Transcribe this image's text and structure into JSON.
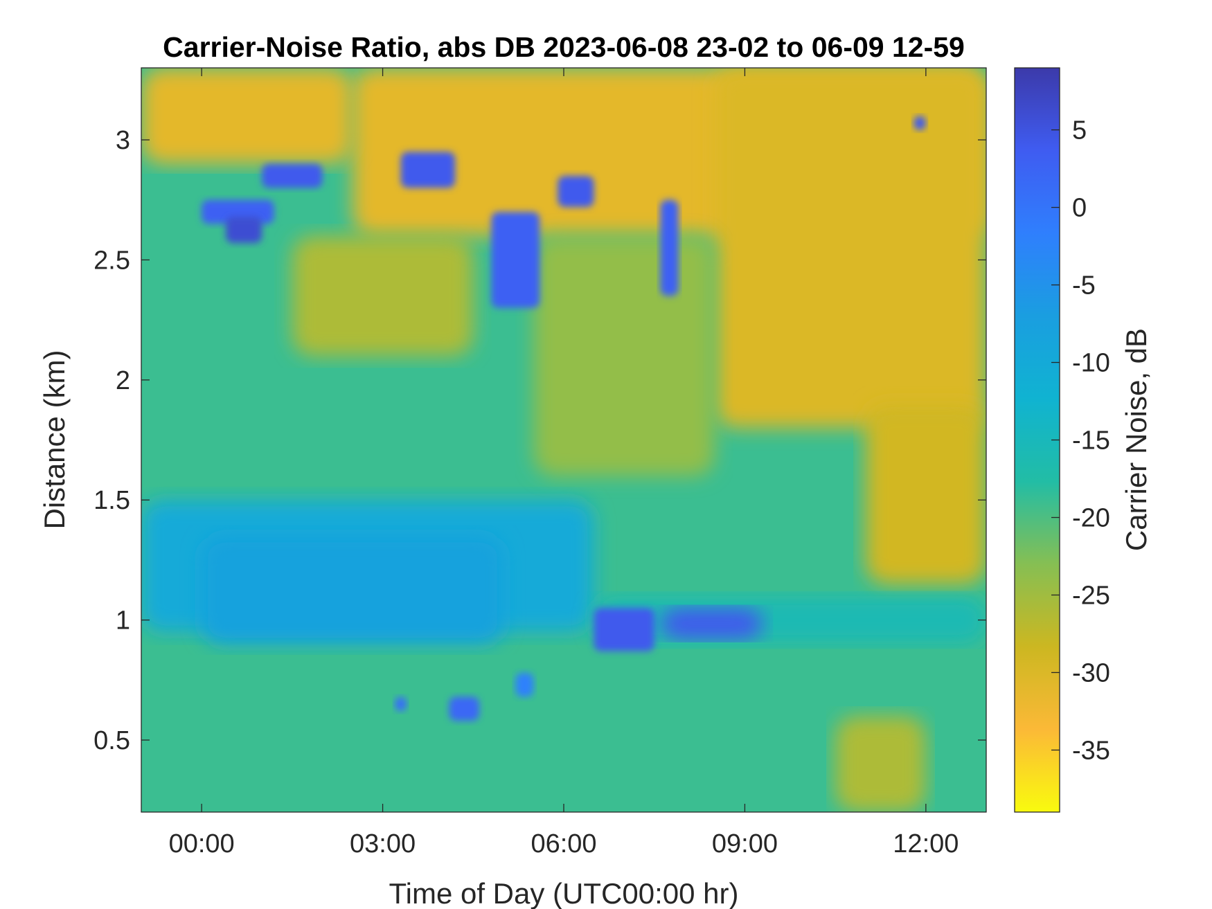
{
  "chart_data": {
    "type": "heatmap",
    "title": "Carrier-Noise Ratio, abs DB 2023-06-08 23-02 to 06-09 12-59",
    "xlabel": "Time of Day (UTC00:00 hr)",
    "ylabel": "Distance (km)",
    "xlim_hours": [
      -1.0,
      13.0
    ],
    "ylim_km": [
      0.2,
      3.3
    ],
    "x_ticks": [
      {
        "value": 0,
        "label": "00:00"
      },
      {
        "value": 3,
        "label": "03:00"
      },
      {
        "value": 6,
        "label": "06:00"
      },
      {
        "value": 9,
        "label": "09:00"
      },
      {
        "value": 12,
        "label": "12:00"
      }
    ],
    "y_ticks": [
      {
        "value": 0.5,
        "label": "0.5"
      },
      {
        "value": 1.0,
        "label": "1"
      },
      {
        "value": 1.5,
        "label": "1.5"
      },
      {
        "value": 2.0,
        "label": "2"
      },
      {
        "value": 2.5,
        "label": "2.5"
      },
      {
        "value": 3.0,
        "label": "3"
      }
    ],
    "colorbar": {
      "label": "Carrier Noise, dB",
      "range": [
        -39,
        9
      ],
      "ticks": [
        {
          "value": 5,
          "label": "5"
        },
        {
          "value": 0,
          "label": "0"
        },
        {
          "value": -5,
          "label": "-5"
        },
        {
          "value": -10,
          "label": "-10"
        },
        {
          "value": -15,
          "label": "-15"
        },
        {
          "value": -20,
          "label": "-20"
        },
        {
          "value": -25,
          "label": "-25"
        },
        {
          "value": -30,
          "label": "-30"
        },
        {
          "value": -35,
          "label": "-35"
        }
      ],
      "colormap": [
        "#f9fb0e",
        "#fbb937",
        "#ccb721",
        "#86bf53",
        "#22bda5",
        "#10b3d1",
        "#1a9ee0",
        "#2f7ffd",
        "#3f5cf1",
        "#3c3aaa"
      ]
    },
    "regions": [
      {
        "name": "background",
        "x": [
          -1,
          13
        ],
        "y": [
          0.2,
          3.3
        ],
        "value": -19
      },
      {
        "name": "clear-air-upper",
        "x": [
          2.5,
          13
        ],
        "y": [
          2.6,
          3.3
        ],
        "value": -31
      },
      {
        "name": "clear-air-upper-left",
        "x": [
          -1,
          2.5
        ],
        "y": [
          2.9,
          3.3
        ],
        "value": -31
      },
      {
        "name": "clear-air-late",
        "x": [
          8.5,
          13
        ],
        "y": [
          1.8,
          3.3
        ],
        "value": -30
      },
      {
        "name": "clear-air-late-lower",
        "x": [
          11.0,
          13
        ],
        "y": [
          1.15,
          1.9
        ],
        "value": -29
      },
      {
        "name": "mid-yellowish",
        "x": [
          1.5,
          4.5
        ],
        "y": [
          2.1,
          2.6
        ],
        "value": -26
      },
      {
        "name": "transition-east",
        "x": [
          5.5,
          8.5
        ],
        "y": [
          1.6,
          2.6
        ],
        "value": -24
      },
      {
        "name": "boundary-layer",
        "x": [
          -1,
          6.5
        ],
        "y": [
          0.95,
          1.5
        ],
        "value": -10
      },
      {
        "name": "boundary-layer-core",
        "x": [
          0,
          5
        ],
        "y": [
          0.9,
          1.35
        ],
        "value": -8
      },
      {
        "name": "surface-layer-late",
        "x": [
          6.5,
          13
        ],
        "y": [
          0.9,
          1.1
        ],
        "value": -16
      },
      {
        "name": "near-surface-late",
        "x": [
          10.5,
          12.0
        ],
        "y": [
          0.2,
          0.6
        ],
        "value": -26
      },
      {
        "name": "cloud-band-1",
        "x": [
          0.0,
          1.2
        ],
        "y": [
          2.65,
          2.75
        ],
        "value": 3
      },
      {
        "name": "cloud-band-2",
        "x": [
          1.0,
          2.0
        ],
        "y": [
          2.8,
          2.9
        ],
        "value": 4
      },
      {
        "name": "cloud-band-3",
        "x": [
          3.3,
          4.2
        ],
        "y": [
          2.8,
          2.95
        ],
        "value": 4
      },
      {
        "name": "cloud-band-4",
        "x": [
          5.9,
          6.5
        ],
        "y": [
          2.72,
          2.85
        ],
        "value": 4
      },
      {
        "name": "cloud-band-5",
        "x": [
          0.4,
          1.0
        ],
        "y": [
          2.57,
          2.68
        ],
        "value": 6
      },
      {
        "name": "cloud-streak-1",
        "x": [
          4.8,
          5.6
        ],
        "y": [
          2.3,
          2.7
        ],
        "value": 3
      },
      {
        "name": "cloud-streak-2",
        "x": [
          7.6,
          7.9
        ],
        "y": [
          2.35,
          2.75
        ],
        "value": 3
      },
      {
        "name": "cloud-patch-top",
        "x": [
          11.8,
          12.0
        ],
        "y": [
          3.04,
          3.1
        ],
        "value": 4
      },
      {
        "name": "low-cloud-1",
        "x": [
          6.5,
          7.5
        ],
        "y": [
          0.87,
          1.05
        ],
        "value": 4
      },
      {
        "name": "low-cloud-2",
        "x": [
          7.6,
          9.3
        ],
        "y": [
          0.92,
          1.05
        ],
        "value": 4
      },
      {
        "name": "low-patch-1",
        "x": [
          4.1,
          4.6
        ],
        "y": [
          0.58,
          0.68
        ],
        "value": 2
      },
      {
        "name": "low-patch-2",
        "x": [
          3.2,
          3.4
        ],
        "y": [
          0.62,
          0.68
        ],
        "value": 1
      },
      {
        "name": "low-patch-3",
        "x": [
          5.2,
          5.5
        ],
        "y": [
          0.68,
          0.78
        ],
        "value": -2
      }
    ]
  }
}
